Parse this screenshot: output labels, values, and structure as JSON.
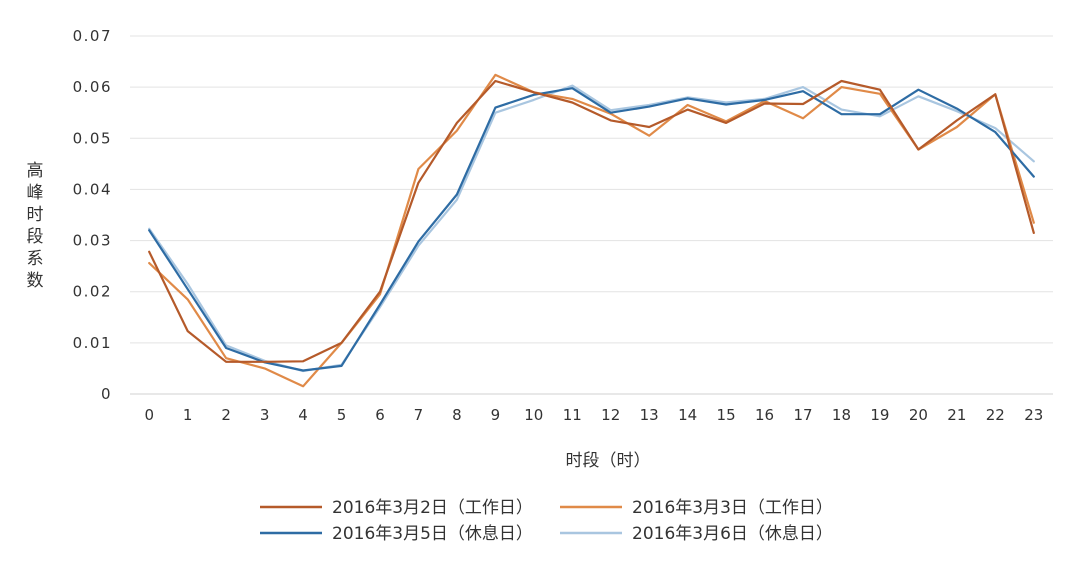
{
  "chart_data": {
    "type": "line",
    "title": "",
    "xlabel": "时段（时）",
    "ylabel": "高峰时段系数",
    "ylim": [
      0,
      0.07
    ],
    "yticks": [
      "0",
      "0.01",
      "0.02",
      "0.03",
      "0.04",
      "0.05",
      "0.06",
      "0.07"
    ],
    "x": [
      "0",
      "1",
      "2",
      "3",
      "4",
      "5",
      "6",
      "7",
      "8",
      "9",
      "10",
      "11",
      "12",
      "13",
      "14",
      "15",
      "16",
      "17",
      "18",
      "19",
      "20",
      "21",
      "22",
      "23"
    ],
    "grid": true,
    "legend_position": "bottom",
    "series": [
      {
        "name": "2016年3月2日（工作日）",
        "color": "#b55a2a",
        "values": [
          0.0278,
          0.0123,
          0.0063,
          0.0063,
          0.0064,
          0.01,
          0.02,
          0.0413,
          0.053,
          0.0612,
          0.059,
          0.057,
          0.0535,
          0.0522,
          0.0556,
          0.053,
          0.0568,
          0.0567,
          0.0612,
          0.0595,
          0.0478,
          0.0535,
          0.0586,
          0.0315
        ]
      },
      {
        "name": "2016年3月3日（工作日）",
        "color": "#e08a48",
        "values": [
          0.0256,
          0.0185,
          0.007,
          0.005,
          0.0015,
          0.01,
          0.0195,
          0.044,
          0.0515,
          0.0624,
          0.059,
          0.0577,
          0.0548,
          0.0505,
          0.0565,
          0.0533,
          0.0573,
          0.0539,
          0.06,
          0.0587,
          0.0478,
          0.0522,
          0.0586,
          0.0335
        ]
      },
      {
        "name": "2016年3月5日（休息日）",
        "color": "#2e6ca4",
        "values": [
          0.032,
          0.0205,
          0.009,
          0.0062,
          0.0046,
          0.0055,
          0.0175,
          0.0298,
          0.039,
          0.056,
          0.0585,
          0.0598,
          0.055,
          0.0562,
          0.0578,
          0.0566,
          0.0575,
          0.0592,
          0.0547,
          0.0547,
          0.0595,
          0.0558,
          0.0512,
          0.0425
        ]
      },
      {
        "name": "2016年3月6日（休息日）",
        "color": "#a9c6e0",
        "values": [
          0.0323,
          0.0215,
          0.0095,
          0.0065,
          0.0045,
          0.0057,
          0.017,
          0.029,
          0.038,
          0.055,
          0.0575,
          0.0603,
          0.0555,
          0.0565,
          0.058,
          0.057,
          0.0577,
          0.06,
          0.0556,
          0.0543,
          0.0582,
          0.0553,
          0.052,
          0.0455
        ]
      }
    ]
  }
}
